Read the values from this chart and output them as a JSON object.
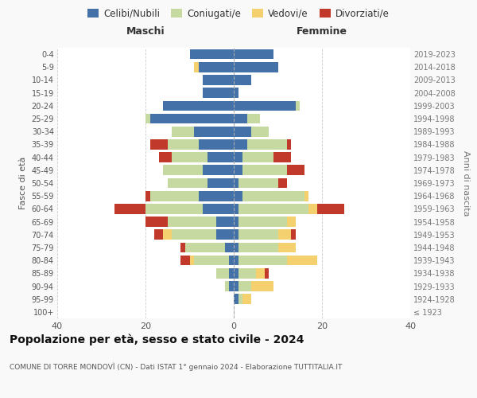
{
  "age_groups": [
    "100+",
    "95-99",
    "90-94",
    "85-89",
    "80-84",
    "75-79",
    "70-74",
    "65-69",
    "60-64",
    "55-59",
    "50-54",
    "45-49",
    "40-44",
    "35-39",
    "30-34",
    "25-29",
    "20-24",
    "15-19",
    "10-14",
    "5-9",
    "0-4"
  ],
  "birth_years": [
    "≤ 1923",
    "1924-1928",
    "1929-1933",
    "1934-1938",
    "1939-1943",
    "1944-1948",
    "1949-1953",
    "1954-1958",
    "1959-1963",
    "1964-1968",
    "1969-1973",
    "1974-1978",
    "1979-1983",
    "1984-1988",
    "1989-1993",
    "1994-1998",
    "1999-2003",
    "2004-2008",
    "2009-2013",
    "2014-2018",
    "2019-2023"
  ],
  "colors": {
    "celibi": "#4472a8",
    "coniugati": "#c5d9a0",
    "vedovi": "#f5d06e",
    "divorziati": "#c0392b"
  },
  "males": {
    "celibi": [
      0,
      0,
      1,
      1,
      1,
      2,
      4,
      4,
      7,
      8,
      6,
      7,
      6,
      8,
      9,
      19,
      16,
      7,
      7,
      8,
      10
    ],
    "coniugati": [
      0,
      0,
      1,
      3,
      8,
      9,
      10,
      11,
      13,
      11,
      9,
      9,
      8,
      7,
      5,
      1,
      0,
      0,
      0,
      0,
      0
    ],
    "vedovi": [
      0,
      0,
      0,
      0,
      1,
      0,
      2,
      0,
      0,
      0,
      0,
      0,
      0,
      0,
      0,
      0,
      0,
      0,
      0,
      1,
      0
    ],
    "divorziati": [
      0,
      0,
      0,
      0,
      2,
      1,
      2,
      5,
      7,
      1,
      0,
      0,
      3,
      4,
      0,
      0,
      0,
      0,
      0,
      0,
      0
    ]
  },
  "females": {
    "celibi": [
      0,
      1,
      1,
      1,
      1,
      1,
      1,
      1,
      1,
      2,
      1,
      2,
      2,
      3,
      4,
      3,
      14,
      1,
      4,
      10,
      9
    ],
    "coniugati": [
      0,
      1,
      3,
      4,
      11,
      9,
      9,
      11,
      16,
      14,
      9,
      10,
      7,
      9,
      4,
      3,
      1,
      0,
      0,
      0,
      0
    ],
    "vedovi": [
      0,
      2,
      5,
      2,
      7,
      4,
      3,
      2,
      2,
      1,
      0,
      0,
      0,
      0,
      0,
      0,
      0,
      0,
      0,
      0,
      0
    ],
    "divorziati": [
      0,
      0,
      0,
      1,
      0,
      0,
      1,
      0,
      6,
      0,
      2,
      4,
      4,
      1,
      0,
      0,
      0,
      0,
      0,
      0,
      0
    ]
  },
  "xlim": 40,
  "title": "Popolazione per età, sesso e stato civile - 2024",
  "subtitle": "COMUNE DI TORRE MONDOVÌ (CN) - Dati ISTAT 1° gennaio 2024 - Elaborazione TUTTITALIA.IT",
  "xlabel_left": "Maschi",
  "xlabel_right": "Femmine",
  "ylabel_left": "Fasce di età",
  "ylabel_right": "Anni di nascita",
  "legend_labels": [
    "Celibi/Nubili",
    "Coniugati/e",
    "Vedovi/e",
    "Divorziati/e"
  ],
  "background_color": "#f9f9f9",
  "plot_background": "#ffffff"
}
